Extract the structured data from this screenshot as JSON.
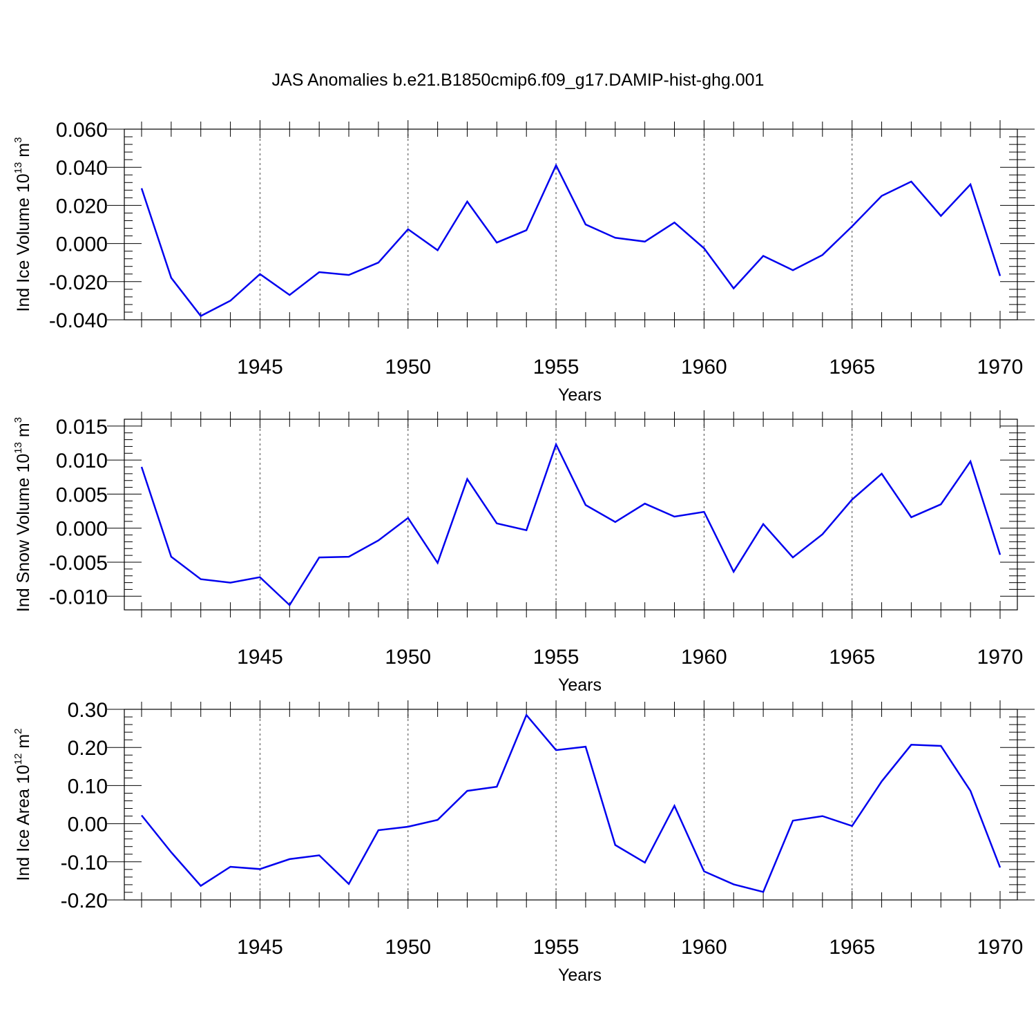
{
  "title": "JAS Anomalies b.e21.B1850cmip6.f09_g17.DAMIP-hist-ghg.001",
  "colors": {
    "series": "#0000ee",
    "axis": "#000000",
    "grid": "#444444"
  },
  "chart_data": [
    {
      "type": "line",
      "ylabel": "Ind Ice Volume 10",
      "ylabel_sup1": "13",
      "ylabel_unit": " m",
      "ylabel_sup2": "3",
      "xlabel": "Years",
      "xlim": [
        1941,
        1970
      ],
      "ylim": [
        -0.04,
        0.06
      ],
      "xticks": [
        1945,
        1950,
        1955,
        1960,
        1965,
        1970
      ],
      "xtick_labels": [
        "1945",
        "1950",
        "1955",
        "1960",
        "1965",
        "1970"
      ],
      "yticks": [
        -0.04,
        -0.02,
        0.0,
        0.02,
        0.04,
        0.06
      ],
      "ytick_labels": [
        "-0.040",
        "-0.020",
        "0.000",
        "0.020",
        "0.040",
        "0.060"
      ],
      "grid": "vertical dashed at major x ticks",
      "x": [
        1941,
        1942,
        1943,
        1944,
        1945,
        1946,
        1947,
        1948,
        1949,
        1950,
        1951,
        1952,
        1953,
        1954,
        1955,
        1956,
        1957,
        1958,
        1959,
        1960,
        1961,
        1962,
        1963,
        1964,
        1965,
        1966,
        1967,
        1968,
        1969,
        1970
      ],
      "series": [
        {
          "values": [
            0.029,
            -0.018,
            -0.038,
            -0.03,
            -0.016,
            -0.027,
            -0.015,
            -0.0165,
            -0.01,
            0.0075,
            -0.0035,
            0.022,
            0.0005,
            0.007,
            0.041,
            0.01,
            0.003,
            0.001,
            0.011,
            -0.0025,
            -0.0235,
            -0.0065,
            -0.014,
            -0.006,
            0.009,
            0.025,
            0.0325,
            0.0145,
            0.031,
            -0.017
          ]
        }
      ]
    },
    {
      "type": "line",
      "ylabel": "Ind Snow Volume 10",
      "ylabel_sup1": "13",
      "ylabel_unit": " m",
      "ylabel_sup2": "3",
      "xlabel": "Years",
      "xlim": [
        1941,
        1970
      ],
      "ylim": [
        -0.012,
        0.016
      ],
      "xticks": [
        1945,
        1950,
        1955,
        1960,
        1965,
        1970
      ],
      "xtick_labels": [
        "1945",
        "1950",
        "1955",
        "1960",
        "1965",
        "1970"
      ],
      "yticks": [
        -0.01,
        -0.005,
        0.0,
        0.005,
        0.01,
        0.015
      ],
      "ytick_labels": [
        "-0.010",
        "-0.005",
        "0.000",
        "0.005",
        "0.010",
        "0.015"
      ],
      "grid": "vertical dashed at major x ticks",
      "x": [
        1941,
        1942,
        1943,
        1944,
        1945,
        1946,
        1947,
        1948,
        1949,
        1950,
        1951,
        1952,
        1953,
        1954,
        1955,
        1956,
        1957,
        1958,
        1959,
        1960,
        1961,
        1962,
        1963,
        1964,
        1965,
        1966,
        1967,
        1968,
        1969,
        1970
      ],
      "series": [
        {
          "values": [
            0.009,
            -0.0042,
            -0.0075,
            -0.008,
            -0.0072,
            -0.0113,
            -0.0043,
            -0.0042,
            -0.0018,
            0.0015,
            -0.0051,
            0.0072,
            0.0007,
            -0.0003,
            0.0123,
            0.0034,
            0.0009,
            0.0036,
            0.0017,
            0.0024,
            -0.0064,
            0.0006,
            -0.0043,
            -0.0009,
            0.0042,
            0.008,
            0.0016,
            0.0035,
            0.0098,
            -0.0039
          ]
        }
      ]
    },
    {
      "type": "line",
      "ylabel": "Ind Ice Area 10",
      "ylabel_sup1": "12",
      "ylabel_unit": " m",
      "ylabel_sup2": "2",
      "xlabel": "Years",
      "xlim": [
        1941,
        1970
      ],
      "ylim": [
        -0.2,
        0.3
      ],
      "xticks": [
        1945,
        1950,
        1955,
        1960,
        1965,
        1970
      ],
      "xtick_labels": [
        "1945",
        "1950",
        "1955",
        "1960",
        "1965",
        "1970"
      ],
      "yticks": [
        -0.2,
        -0.1,
        0.0,
        0.1,
        0.2,
        0.3
      ],
      "ytick_labels": [
        "-0.20",
        "-0.10",
        "0.00",
        "0.10",
        "0.20",
        "0.30"
      ],
      "grid": "vertical dashed at major x ticks",
      "x": [
        1941,
        1942,
        1943,
        1944,
        1945,
        1946,
        1947,
        1948,
        1949,
        1950,
        1951,
        1952,
        1953,
        1954,
        1955,
        1956,
        1957,
        1958,
        1959,
        1960,
        1961,
        1962,
        1963,
        1964,
        1965,
        1966,
        1967,
        1968,
        1969,
        1970
      ],
      "series": [
        {
          "values": [
            0.022,
            -0.075,
            -0.163,
            -0.113,
            -0.119,
            -0.093,
            -0.083,
            -0.158,
            -0.017,
            -0.008,
            0.01,
            0.086,
            0.097,
            0.285,
            0.193,
            0.202,
            -0.056,
            -0.102,
            0.047,
            -0.125,
            -0.159,
            -0.179,
            0.008,
            0.02,
            -0.006,
            0.111,
            0.207,
            0.204,
            0.086,
            -0.115
          ]
        }
      ]
    }
  ]
}
